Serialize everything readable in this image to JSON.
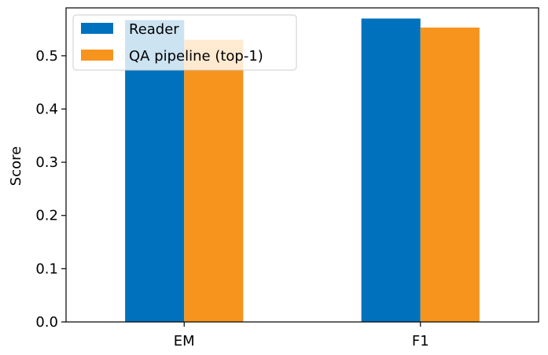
{
  "chart_data": {
    "type": "bar",
    "title": "",
    "xlabel": "",
    "ylabel": "Score",
    "categories": [
      "EM",
      "F1"
    ],
    "series": [
      {
        "name": "Reader",
        "values": [
          0.567,
          0.57
        ],
        "color": "#0072bd"
      },
      {
        "name": "QA pipeline (top-1)",
        "values": [
          0.53,
          0.553
        ],
        "color": "#f7941d"
      }
    ],
    "ylim": [
      0,
      0.59
    ],
    "yticks": [
      0.0,
      0.1,
      0.2,
      0.3,
      0.4,
      0.5
    ],
    "ytick_labels": [
      "0.0",
      "0.1",
      "0.2",
      "0.3",
      "0.4",
      "0.5"
    ],
    "grid": false,
    "legend_position": "top-left"
  }
}
